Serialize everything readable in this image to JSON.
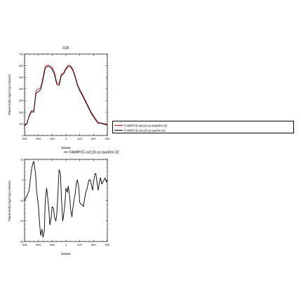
{
  "chart_data": [
    {
      "type": "line",
      "title": "DJF",
      "xlabel": "latitude",
      "ylabel": "Planet bndry layer hgt (meters)",
      "x_ticks": [
        "90N",
        "60N",
        "30N",
        "0",
        "30S",
        "60S",
        "90S"
      ],
      "y_ticks": [
        "0",
        "100",
        "200",
        "300",
        "400",
        "500",
        "600",
        "700"
      ],
      "xlim": [
        90,
        -90
      ],
      "ylim": [
        0,
        700
      ],
      "legend_position": "right",
      "x": [
        90,
        85,
        80,
        75,
        70,
        65,
        60,
        55,
        50,
        45,
        40,
        35,
        30,
        25,
        20,
        15,
        10,
        5,
        0,
        -5,
        -10,
        -15,
        -20,
        -25,
        -30,
        -35,
        -40,
        -45,
        -50,
        -55,
        -60,
        -65,
        -70,
        -75,
        -80,
        -85,
        -90
      ],
      "series": [
        {
          "name": "FAMIPC5.ne120.ys.tau60m.02",
          "color": "#d7191c",
          "values": [
            90,
            105,
            170,
            215,
            210,
            385,
            400,
            410,
            500,
            595,
            605,
            600,
            585,
            540,
            455,
            445,
            530,
            540,
            580,
            605,
            600,
            570,
            510,
            440,
            395,
            360,
            320,
            280,
            240,
            200,
            170,
            140,
            110,
            110,
            105,
            100,
            95
          ]
        },
        {
          "name": "FAMIPC5.ne120.ys.tau5m.02",
          "color": "#000000",
          "values": [
            85,
            100,
            165,
            205,
            200,
            365,
            375,
            395,
            480,
            580,
            595,
            590,
            570,
            525,
            440,
            430,
            515,
            530,
            570,
            595,
            590,
            560,
            500,
            430,
            385,
            350,
            310,
            270,
            230,
            190,
            160,
            130,
            105,
            105,
            100,
            95,
            90
          ]
        }
      ]
    },
    {
      "type": "line",
      "xlabel": "latitude",
      "ylabel": "Planet bndry layer hgt (meters)",
      "x_ticks": [
        "90N",
        "60N",
        "30N",
        "0",
        "30S",
        "60S",
        "90S"
      ],
      "y_ticks": [
        "-30",
        "-20",
        "-10",
        "0",
        "10"
      ],
      "xlim": [
        90,
        -90
      ],
      "ylim": [
        -30,
        10
      ],
      "legend_position": "top-right",
      "x": [
        90,
        85,
        80,
        75,
        72,
        70,
        66,
        64,
        60,
        57,
        55,
        52,
        50,
        47,
        45,
        42,
        40,
        37,
        35,
        32,
        30,
        27,
        25,
        22,
        20,
        17,
        15,
        12,
        10,
        7,
        5,
        2,
        0,
        -3,
        -5,
        -8,
        -10,
        -13,
        -15,
        -18,
        -20,
        -23,
        -25,
        -28,
        -30,
        -33,
        -35,
        -38,
        -40,
        -43,
        -45,
        -48,
        -50,
        -53,
        -55,
        -58,
        -60,
        -63,
        -65,
        -68,
        -70,
        -73,
        -75,
        -78,
        -80,
        -83,
        -85,
        -88,
        -90
      ],
      "series": [
        {
          "name": "FAMIPC5.ne120.ys.tau60m.02",
          "color": "#000000",
          "values": [
            -10,
            -8,
            -5,
            5,
            8,
            9,
            3,
            -5,
            -12,
            -22,
            -27,
            -24,
            -28,
            -25,
            -10,
            -4,
            -8,
            -15,
            -22,
            -18,
            -13,
            -14,
            -18,
            -20,
            -17,
            -5,
            5,
            3,
            -8,
            -20,
            -17,
            -11,
            -4,
            -6,
            -3,
            -8,
            -14,
            -18,
            -14,
            -9,
            -7,
            -1,
            0,
            -4,
            -11,
            -12,
            -12,
            -13,
            -10,
            -6,
            -5,
            -2,
            0,
            0,
            -2,
            -5,
            -1,
            3,
            3,
            -2,
            -5,
            -1,
            1,
            -2,
            -1,
            0,
            1,
            -1,
            0
          ]
        }
      ]
    }
  ]
}
